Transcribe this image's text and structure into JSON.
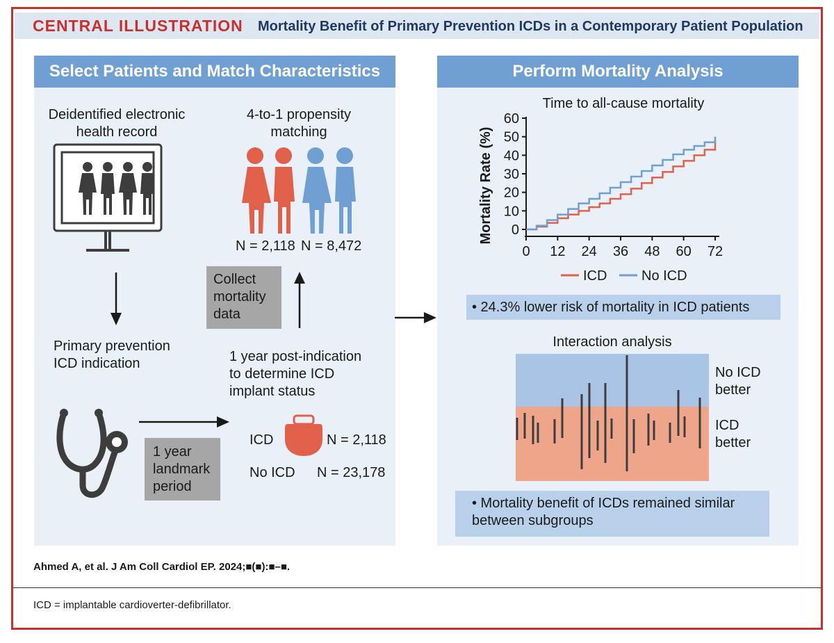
{
  "header": {
    "label": "CENTRAL ILLUSTRATION",
    "title": "Mortality Benefit of Primary Prevention ICDs in a Contemporary Patient Population"
  },
  "left_panel": {
    "title": "Select Patients and Match Characteristics",
    "ehr_label_line1": "Deidentified electronic",
    "ehr_label_line2": "health record",
    "matching_label_line1": "4-to-1 propensity",
    "matching_label_line2": "matching",
    "matched_icd_n": "N = 2,118",
    "matched_noicd_n": "N = 8,472",
    "collect_line1": "Collect",
    "collect_line2": "mortality",
    "collect_line3": "data",
    "indication_line1": "Primary prevention",
    "indication_line2": "ICD indication",
    "post_line1": "1 year post-indication",
    "post_line2": "to determine ICD",
    "post_line3": "implant status",
    "landmark_line1": "1 year",
    "landmark_line2": "landmark",
    "landmark_line3": "period",
    "icd_label": "ICD",
    "icd_n": "N = 2,118",
    "noicd_label": "No ICD",
    "noicd_n": "N = 23,178"
  },
  "right_panel": {
    "title": "Perform Mortality Analysis",
    "bullet1": "• 24.3% lower risk of mortality in ICD patients",
    "interaction_title": "Interaction analysis",
    "noicd_better_line1": "No ICD",
    "noicd_better_line2": "better",
    "icd_better_line1": "ICD",
    "icd_better_line2": "better",
    "bullet2_line1": "• Mortality benefit of ICDs remained similar",
    "bullet2_line2": "between subgroups"
  },
  "chart_data": {
    "type": "line",
    "title": "Time to all-cause mortality",
    "xlabel": "",
    "ylabel": "Mortality Rate (%)",
    "xlim": [
      0,
      72
    ],
    "ylim": [
      0,
      60
    ],
    "xticks": [
      "0",
      "12",
      "24",
      "36",
      "48",
      "60",
      "72"
    ],
    "yticks": [
      "0",
      "10",
      "20",
      "30",
      "40",
      "50",
      "60"
    ],
    "legend_position": "bottom",
    "series": [
      {
        "name": "ICD",
        "color": "#e0604a",
        "x": [
          0,
          4,
          8,
          12,
          16,
          20,
          24,
          28,
          32,
          36,
          40,
          44,
          48,
          52,
          56,
          60,
          64,
          68,
          72
        ],
        "y": [
          0,
          1.5,
          3.5,
          6,
          8,
          10,
          12,
          14,
          16.5,
          19,
          22,
          25,
          28,
          31,
          34,
          37,
          40,
          43,
          47
        ]
      },
      {
        "name": "No ICD",
        "color": "#6f9fd3",
        "x": [
          0,
          4,
          8,
          12,
          16,
          20,
          24,
          28,
          32,
          36,
          40,
          44,
          48,
          52,
          56,
          60,
          64,
          68,
          72
        ],
        "y": [
          0,
          2,
          5,
          8,
          11,
          14,
          16.5,
          19.5,
          22.5,
          25.5,
          28.5,
          31.5,
          34.5,
          37.5,
          40.5,
          43,
          45,
          47,
          50
        ]
      }
    ]
  },
  "citation": "Ahmed A, et al. J Am Coll Cardiol EP. 2024;■(■):■–■.",
  "footnote": "ICD = implantable cardioverter-defibrillator.",
  "colors": {
    "accent_red": "#c9302c",
    "panel_blue": "#6f9fd3",
    "icd_red": "#e0604a",
    "noicd_blue": "#6f9fd3"
  },
  "icons": [
    "monitor-icon",
    "family-icon",
    "couple-icon",
    "stethoscope-icon",
    "icd-device-icon"
  ]
}
